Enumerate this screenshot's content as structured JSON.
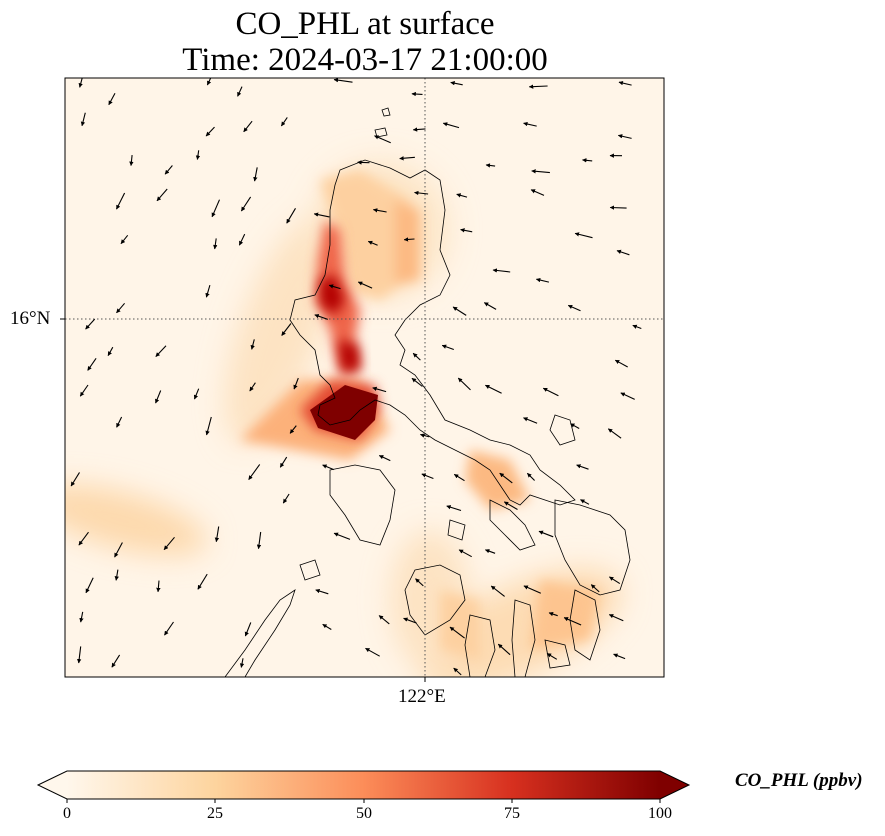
{
  "title": {
    "line1": "CO_PHL at surface",
    "line2": "Time: 2024-03-17 21:00:00"
  },
  "map": {
    "variable": "CO_PHL",
    "level": "surface",
    "gridlines": "dotted",
    "lat_tick_label": "16°N",
    "lon_tick_label": "122°E",
    "vectors": "wind arrows",
    "coastlines": true
  },
  "colorbar": {
    "label": "CO_PHL (ppbv)",
    "colormap": "OrRd",
    "extend": "both",
    "vmin": 0,
    "vmax": 100,
    "ticks": [
      "0",
      "25",
      "50",
      "75",
      "100"
    ],
    "colors": [
      "#fff7ec",
      "#fdd49e",
      "#fc8d59",
      "#d7301f",
      "#7f0000"
    ]
  },
  "plumes": [
    {
      "name": "central-luzon-plume",
      "peak_ppbv": 100
    },
    {
      "name": "northern-luzon-ridge",
      "peak_ppbv": 85
    },
    {
      "name": "bicol-plume",
      "peak_ppbv": 45
    },
    {
      "name": "visayas-plume",
      "peak_ppbv": 35
    },
    {
      "name": "west-sea-plume",
      "peak_ppbv": 22
    }
  ]
}
